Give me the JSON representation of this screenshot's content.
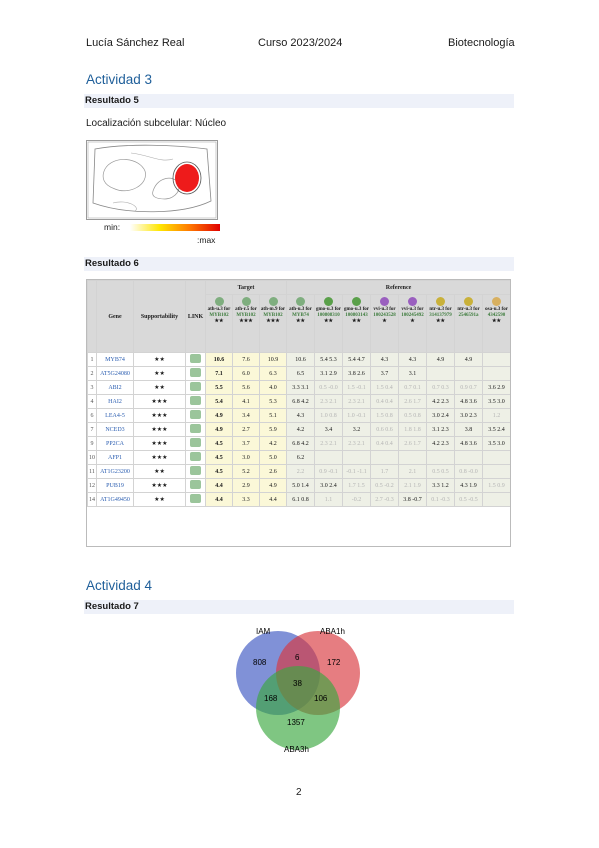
{
  "header": {
    "author": "Lucía Sánchez Real",
    "course": "Curso 2023/2024",
    "subject": "Biotecnología"
  },
  "section3": {
    "title": "Actividad 3",
    "result5": {
      "title": "Resultado 5",
      "label": "Localización subcelular: Núcleo",
      "scale_min": "min:",
      "scale_max": ":max"
    },
    "result6": {
      "title": "Resultado 6",
      "columns": {
        "gene": "Gene",
        "supportability": "Supportability",
        "link": "LINK",
        "target": "Target",
        "reference": "Reference",
        "probes": [
          "ath-u.3 for",
          "ath-r.5 for",
          "ath-m.9 for",
          "ath-u.3 for",
          "gmo-u.3 for",
          "gmo-u.3 for",
          "vvi-u.3 for",
          "vvi-u.3 for",
          "ntr-u.3 for",
          "ntr-u.3 for",
          "osa-u.3 for"
        ],
        "probe_ids": [
          "MYB102",
          "MYB102",
          "MYB102",
          "MYB74",
          "100808310",
          "100803143",
          "100243528",
          "100245492",
          "314137979",
          "2546591a",
          "4342590"
        ],
        "probe_stars": [
          "★★",
          "★★★",
          "★★★",
          "★★",
          "★★",
          "★★",
          "★",
          "★",
          "★★",
          "",
          "★★"
        ]
      },
      "rows": [
        {
          "n": "1",
          "gene": "MYB74",
          "supp": "★★",
          "t1": "10.6",
          "t2": "7.6",
          "t3": "10.9",
          "r": [
            "10.6",
            "5.4 5.3",
            "5.4 4.7",
            "4.3",
            "4.3",
            "4.9",
            "4.9",
            ""
          ]
        },
        {
          "n": "2",
          "gene": "AT5G24080",
          "supp": "★★",
          "t1": "7.1",
          "t2": "6.0",
          "t3": "6.3",
          "r": [
            "6.5",
            "3.1 2.9",
            "3.8 2.6",
            "3.7",
            "3.1",
            "",
            "",
            ""
          ]
        },
        {
          "n": "3",
          "gene": "ABI2",
          "supp": "★★",
          "t1": "5.5",
          "t2": "5.6",
          "t3": "4.0",
          "r": [
            "3.3 3.1",
            "0.5 -0.0",
            "1.5 -0.1",
            "1.5 0.4",
            "0.7 0.1",
            "0.7 0.3",
            "0.9 0.7",
            "3.6 2.9"
          ]
        },
        {
          "n": "4",
          "gene": "HAI2",
          "supp": "★★★",
          "t1": "5.4",
          "t2": "4.1",
          "t3": "5.3",
          "r": [
            "6.8 4.2",
            "2.3 2.1",
            "2.3 2.1",
            "0.4 0.4",
            "2.6 1.7",
            "4.2 2.3",
            "4.8 3.6",
            "3.5 3.0"
          ]
        },
        {
          "n": "6",
          "gene": "LEA4-5",
          "supp": "★★★",
          "t1": "4.9",
          "t2": "3.4",
          "t3": "5.1",
          "r": [
            "4.3",
            "1.0 0.8",
            "1.0 -0.1",
            "1.5 0.8",
            "0.5 0.8",
            "3.0 2.4",
            "3.0 2.3",
            "1.2"
          ]
        },
        {
          "n": "7",
          "gene": "NCED3",
          "supp": "★★★",
          "t1": "4.9",
          "t2": "2.7",
          "t3": "5.9",
          "r": [
            "4.2",
            "3.4",
            "3.2",
            "0.6 0.6",
            "1.8 1.8",
            "3.1 2.3",
            "3.8",
            "3.5 2.4"
          ]
        },
        {
          "n": "9",
          "gene": "PP2CA",
          "supp": "★★★",
          "t1": "4.5",
          "t2": "3.7",
          "t3": "4.2",
          "r": [
            "6.8 4.2",
            "2.3 2.1",
            "2.3 2.1",
            "0.4 0.4",
            "2.6 1.7",
            "4.2 2.3",
            "4.8 3.6",
            "3.5 3.0"
          ]
        },
        {
          "n": "10",
          "gene": "AFP1",
          "supp": "★★★",
          "t1": "4.5",
          "t2": "3.0",
          "t3": "5.0",
          "r": [
            "6.2",
            "",
            "",
            "",
            "",
            "",
            "",
            ""
          ]
        },
        {
          "n": "11",
          "gene": "AT1G23200",
          "supp": "★★",
          "t1": "4.5",
          "t2": "5.2",
          "t3": "2.6",
          "r": [
            "2.2",
            "0.9 -0.1",
            "-0.1 -1.1",
            "1.7",
            "2.1",
            "0.5 0.5",
            "0.8 -0.0",
            ""
          ]
        },
        {
          "n": "12",
          "gene": "PUB19",
          "supp": "★★★",
          "t1": "4.4",
          "t2": "2.9",
          "t3": "4.9",
          "r": [
            "5.0 1.4",
            "3.0 2.4",
            "1.7 1.5",
            "0.5 -0.2",
            "2.1 1.9",
            "3.3 1.2",
            "4.3 1.9",
            "1.5 0.9"
          ]
        },
        {
          "n": "14",
          "gene": "AT1G49450",
          "supp": "★★",
          "t1": "4.4",
          "t2": "3.3",
          "t3": "4.4",
          "r": [
            "6.1 0.8",
            "1.1",
            "-0.2",
            "2.7 -0.3",
            "3.8 -0.7",
            "0.1 -0.3",
            "0.5 -0.5",
            ""
          ]
        }
      ]
    }
  },
  "section4": {
    "title": "Actividad 4",
    "result7": {
      "title": "Resultado 7",
      "sets": [
        {
          "name": "IAM",
          "color": "#4a63c6"
        },
        {
          "name": "ABA1h",
          "color": "#d9383e"
        },
        {
          "name": "ABA3h",
          "color": "#3aa83f"
        }
      ],
      "regions": {
        "only_iam": "808",
        "only_aba1h": "172",
        "only_aba3h": "1357",
        "iam_aba1h": "6",
        "iam_aba3h": "168",
        "aba1h_aba3h": "106",
        "all": "38"
      }
    }
  },
  "footer": {
    "page": "2"
  }
}
